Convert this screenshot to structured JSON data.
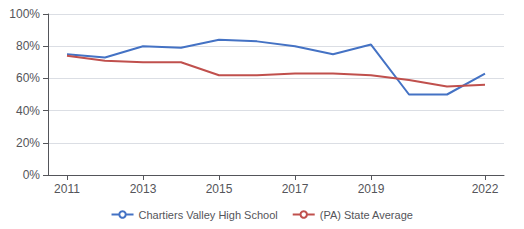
{
  "chart_data": {
    "type": "line",
    "x": [
      2011,
      2012,
      2013,
      2014,
      2015,
      2016,
      2017,
      2018,
      2019,
      2020,
      2021,
      2022
    ],
    "series": [
      {
        "name": "Chartiers Valley High School",
        "color": "#4472C4",
        "values": [
          0.75,
          0.73,
          0.8,
          0.79,
          0.84,
          0.83,
          0.8,
          0.75,
          0.81,
          0.5,
          0.5,
          0.63
        ]
      },
      {
        "name": "(PA) State Average",
        "color": "#C0504D",
        "values": [
          0.74,
          0.71,
          0.7,
          0.7,
          0.62,
          0.62,
          0.63,
          0.63,
          0.62,
          0.59,
          0.55,
          0.56
        ]
      }
    ],
    "xlim": [
      2010.5,
      2022.5
    ],
    "xticks": [
      2011,
      2013,
      2015,
      2017,
      2019,
      2022
    ],
    "ylim": [
      0,
      1.0
    ],
    "yticks": [
      {
        "value": 0,
        "label": "0%"
      },
      {
        "value": 0.2,
        "label": "20%"
      },
      {
        "value": 0.4,
        "label": "40%"
      },
      {
        "value": 0.6,
        "label": "60%"
      },
      {
        "value": 0.8,
        "label": "80%"
      },
      {
        "value": 1.0,
        "label": "100%"
      }
    ],
    "grid": true,
    "legend": "bottom"
  }
}
